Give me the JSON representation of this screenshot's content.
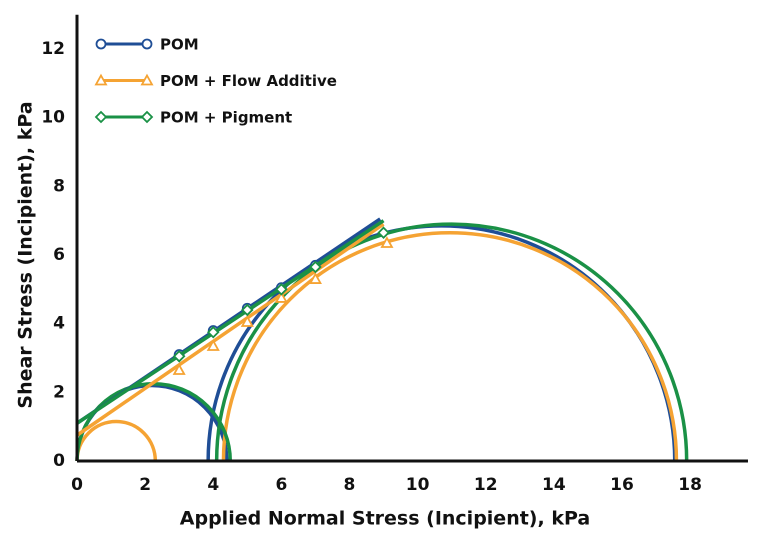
{
  "chart_data": {
    "type": "mohr",
    "xlabel": "Applied Normal Stress (Incipient), kPa",
    "ylabel": "Shear Stress (Incipient), kPa",
    "xlim": [
      0,
      19.7
    ],
    "ylim": [
      0,
      13
    ],
    "xticks": [
      0,
      2,
      4,
      6,
      8,
      10,
      12,
      14,
      16,
      18
    ],
    "yticks": [
      0,
      2,
      4,
      6,
      8,
      10,
      12
    ],
    "grid": false,
    "legend": "upper left",
    "series": [
      {
        "name": "POM",
        "color": "#1f4e96",
        "marker": "circle",
        "x": [
          3,
          4,
          5,
          6,
          7
        ],
        "values": [
          3.1,
          3.8,
          4.45,
          5.05,
          5.7
        ],
        "locus_x": [
          0,
          8.9
        ],
        "locus_y": [
          1.1,
          7.05
        ],
        "circles": [
          [
            0,
            4.4
          ],
          [
            3.85,
            17.55
          ]
        ]
      },
      {
        "name": "POM + Flow Additive",
        "color": "#f5a333",
        "marker": "triangle",
        "x": [
          3,
          4,
          5,
          6,
          7,
          9.1
        ],
        "values": [
          2.65,
          3.35,
          4.05,
          4.75,
          5.3,
          6.35
        ],
        "locus_x": [
          0,
          9
        ],
        "locus_y": [
          0.75,
          6.9
        ],
        "circles": [
          [
            0,
            2.3
          ],
          [
            4.3,
            17.6
          ]
        ]
      },
      {
        "name": "POM + Pigment",
        "color": "#1a9146",
        "marker": "diamond",
        "x": [
          3,
          4,
          5,
          6,
          7,
          9
        ],
        "values": [
          3.05,
          3.75,
          4.4,
          5.0,
          5.65,
          6.65
        ],
        "locus_x": [
          0,
          9
        ],
        "locus_y": [
          1.1,
          7.0
        ],
        "circles": [
          [
            0,
            4.5
          ],
          [
            4.1,
            17.9
          ]
        ]
      }
    ]
  }
}
